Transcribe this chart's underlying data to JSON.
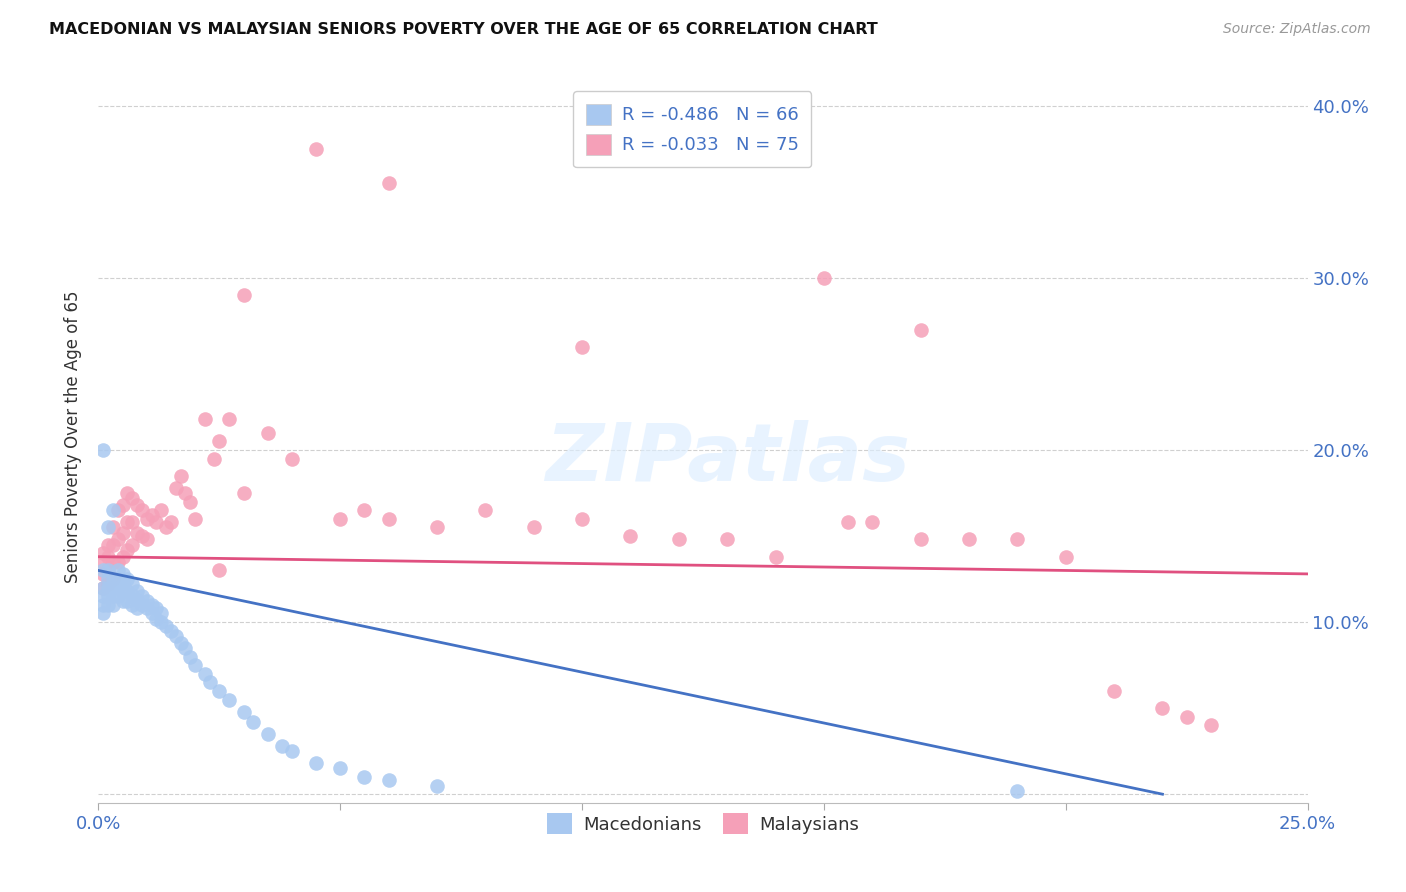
{
  "title": "MACEDONIAN VS MALAYSIAN SENIORS POVERTY OVER THE AGE OF 65 CORRELATION CHART",
  "source": "Source: ZipAtlas.com",
  "ylabel": "Seniors Poverty Over the Age of 65",
  "xlim": [
    0.0,
    0.25
  ],
  "ylim": [
    -0.005,
    0.42
  ],
  "x_ticks": [
    0.0,
    0.05,
    0.1,
    0.15,
    0.2,
    0.25
  ],
  "y_ticks": [
    0.0,
    0.1,
    0.2,
    0.3,
    0.4
  ],
  "y_tick_labels": [
    "",
    "10.0%",
    "20.0%",
    "30.0%",
    "40.0%"
  ],
  "x_tick_labels": [
    "0.0%",
    "",
    "",
    "",
    "",
    "25.0%"
  ],
  "grid_color": "#d0d0d0",
  "background_color": "#ffffff",
  "macedonian_color": "#a8c8f0",
  "malaysian_color": "#f5a0b8",
  "macedonian_line_color": "#4472c4",
  "malaysian_line_color": "#e05080",
  "macedonian_R": "-0.486",
  "macedonian_N": "66",
  "malaysian_R": "-0.033",
  "malaysian_N": "75",
  "legend_label_macedonians": "Macedonians",
  "legend_label_malaysians": "Malaysians",
  "mac_x": [
    0.001,
    0.001,
    0.001,
    0.001,
    0.001,
    0.002,
    0.002,
    0.002,
    0.002,
    0.002,
    0.003,
    0.003,
    0.003,
    0.003,
    0.004,
    0.004,
    0.004,
    0.004,
    0.005,
    0.005,
    0.005,
    0.005,
    0.006,
    0.006,
    0.006,
    0.007,
    0.007,
    0.007,
    0.008,
    0.008,
    0.008,
    0.009,
    0.009,
    0.01,
    0.01,
    0.011,
    0.011,
    0.012,
    0.012,
    0.013,
    0.013,
    0.014,
    0.015,
    0.016,
    0.017,
    0.018,
    0.019,
    0.02,
    0.022,
    0.023,
    0.025,
    0.027,
    0.03,
    0.032,
    0.035,
    0.038,
    0.04,
    0.045,
    0.05,
    0.055,
    0.06,
    0.07,
    0.001,
    0.002,
    0.003,
    0.19
  ],
  "mac_y": [
    0.13,
    0.12,
    0.115,
    0.11,
    0.105,
    0.13,
    0.125,
    0.12,
    0.115,
    0.11,
    0.125,
    0.12,
    0.115,
    0.11,
    0.13,
    0.125,
    0.12,
    0.115,
    0.128,
    0.122,
    0.118,
    0.112,
    0.125,
    0.118,
    0.112,
    0.122,
    0.116,
    0.11,
    0.118,
    0.113,
    0.108,
    0.115,
    0.11,
    0.112,
    0.108,
    0.11,
    0.105,
    0.108,
    0.102,
    0.105,
    0.1,
    0.098,
    0.095,
    0.092,
    0.088,
    0.085,
    0.08,
    0.075,
    0.07,
    0.065,
    0.06,
    0.055,
    0.048,
    0.042,
    0.035,
    0.028,
    0.025,
    0.018,
    0.015,
    0.01,
    0.008,
    0.005,
    0.2,
    0.155,
    0.165,
    0.002
  ],
  "mal_x": [
    0.001,
    0.001,
    0.001,
    0.001,
    0.002,
    0.002,
    0.002,
    0.002,
    0.003,
    0.003,
    0.003,
    0.003,
    0.004,
    0.004,
    0.004,
    0.005,
    0.005,
    0.005,
    0.006,
    0.006,
    0.006,
    0.007,
    0.007,
    0.007,
    0.008,
    0.008,
    0.009,
    0.009,
    0.01,
    0.01,
    0.011,
    0.012,
    0.013,
    0.014,
    0.015,
    0.016,
    0.017,
    0.018,
    0.019,
    0.02,
    0.022,
    0.024,
    0.025,
    0.027,
    0.03,
    0.035,
    0.04,
    0.05,
    0.055,
    0.06,
    0.07,
    0.08,
    0.09,
    0.1,
    0.11,
    0.12,
    0.13,
    0.14,
    0.155,
    0.16,
    0.17,
    0.18,
    0.19,
    0.2,
    0.21,
    0.22,
    0.225,
    0.23,
    0.17,
    0.15,
    0.1,
    0.06,
    0.045,
    0.03,
    0.025
  ],
  "mal_y": [
    0.14,
    0.135,
    0.128,
    0.12,
    0.145,
    0.138,
    0.13,
    0.122,
    0.155,
    0.145,
    0.135,
    0.125,
    0.165,
    0.148,
    0.135,
    0.168,
    0.152,
    0.138,
    0.175,
    0.158,
    0.142,
    0.172,
    0.158,
    0.145,
    0.168,
    0.152,
    0.165,
    0.15,
    0.16,
    0.148,
    0.162,
    0.158,
    0.165,
    0.155,
    0.158,
    0.178,
    0.185,
    0.175,
    0.17,
    0.16,
    0.218,
    0.195,
    0.205,
    0.218,
    0.175,
    0.21,
    0.195,
    0.16,
    0.165,
    0.16,
    0.155,
    0.165,
    0.155,
    0.16,
    0.15,
    0.148,
    0.148,
    0.138,
    0.158,
    0.158,
    0.148,
    0.148,
    0.148,
    0.138,
    0.06,
    0.05,
    0.045,
    0.04,
    0.27,
    0.3,
    0.26,
    0.355,
    0.375,
    0.29,
    0.13
  ]
}
